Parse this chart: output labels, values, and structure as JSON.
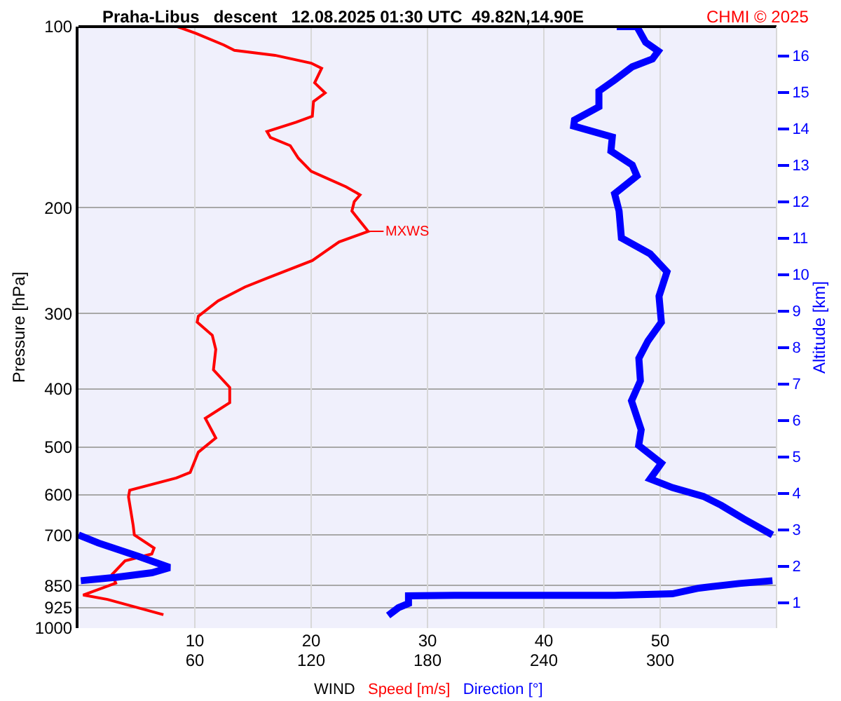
{
  "chart_data": {
    "type": "line",
    "orientation": "horizontal",
    "title": "Praha-Libus   descent   12.08.2025 01:30 UTC  49.82N,14.90E",
    "xlabel": "WIND",
    "ylabel": "Pressure [hPa]",
    "y2label": "Altitude [km]",
    "annotations": [
      "CHMI © 2025",
      {
        "text": "MXWS",
        "x": 24.9,
        "y": 219
      }
    ],
    "log": "y",
    "grid": true,
    "xlim": [
      0,
      60
    ],
    "xticks": [
      10,
      20,
      30,
      40,
      50
    ],
    "x2lim": [
      0,
      360
    ],
    "x2ticks": [
      60,
      120,
      180,
      240,
      300
    ],
    "ylim": [
      1000,
      100
    ],
    "yticks": [
      100,
      200,
      300,
      400,
      500,
      600,
      700,
      850,
      925,
      1000
    ],
    "y2lim": [
      0.3,
      16.8
    ],
    "y2ticks": [
      1,
      2,
      3,
      4,
      5,
      6,
      7,
      8,
      9,
      10,
      11,
      12,
      13,
      14,
      15,
      16
    ],
    "series": [
      {
        "name": "Speed [m/s]",
        "color": "#ff0000",
        "values": [
          8.5,
          10.1,
          12.5,
          13.4,
          16.9,
          20,
          20.9,
          20.3,
          21.2,
          20.2,
          20.1,
          18.7,
          16.2,
          16.5,
          18.2,
          18.9,
          20,
          23,
          24.2,
          23.7,
          23.5,
          24.9,
          22.4,
          21.2,
          20.1,
          16.2,
          14.3,
          12,
          10.3,
          10.2,
          11.5,
          11.8,
          11.6,
          13,
          13,
          10.9,
          11.8,
          10.3,
          9.6,
          8.4,
          4.4,
          4.3,
          4.7,
          4.8,
          6.5,
          6.3,
          4.0,
          2.9,
          3.2,
          0.4,
          2.5,
          7.3
        ],
        "x": [
          100,
          102.6,
          107.3,
          109.5,
          111.6,
          115,
          117.3,
          124,
          128.9,
          133.2,
          140.9,
          144.2,
          149.4,
          152.9,
          157.7,
          165.5,
          174,
          184.6,
          190.4,
          195.5,
          202.6,
          219,
          228,
          236.6,
          244.8,
          262,
          271,
          285.7,
          303,
          310,
          326,
          344,
          372,
          398,
          422,
          448,
          483,
          510,
          551,
          563,
          590,
          605,
          675,
          700,
          736,
          753,
          773,
          814,
          842,
          881,
          896,
          950
        ]
      },
      {
        "name": "Direction [°]",
        "color": "#0000ff",
        "axis": "x2",
        "values": [
          277.6,
          288,
          292.5,
          299,
          296,
          285.6,
          276.5,
          268.4,
          268.4,
          255.8,
          255.4,
          275.3,
          274.6,
          285.6,
          288,
          276.5,
          278.8,
          280,
          294.8,
          303.5,
          299.4,
          300.6,
          293.7,
          289,
          289.8,
          285.2,
          290.2,
          288.9,
          300.6,
          294.8,
          306.3,
          322.3,
          331.5,
          343,
          357.9,
          null,
          0,
          10.3,
          31,
          47,
          37.9,
          19.5,
          1.2,
          null,
          357.9,
          340.7,
          320,
          306.3,
          276.5,
          233.7,
          194,
          170.2,
          170.2,
          165,
          159.7
        ],
        "x": [
          100,
          100,
          106.2,
          109.8,
          113.2,
          116.6,
          122.7,
          128,
          135.9,
          143,
          146.3,
          152.6,
          161,
          169.8,
          177.1,
          189.6,
          202.6,
          224.6,
          238.6,
          255.6,
          280.7,
          310,
          333,
          356,
          388,
          419,
          468,
          497,
          532,
          565,
          584,
          604,
          625,
          658,
          700,
          null,
          700,
          722,
          760,
          793,
          809,
          823,
          834,
          null,
          834,
          843,
          858,
          877,
          882,
          882,
          882,
          884,
          910,
          925,
          953
        ]
      }
    ]
  }
}
